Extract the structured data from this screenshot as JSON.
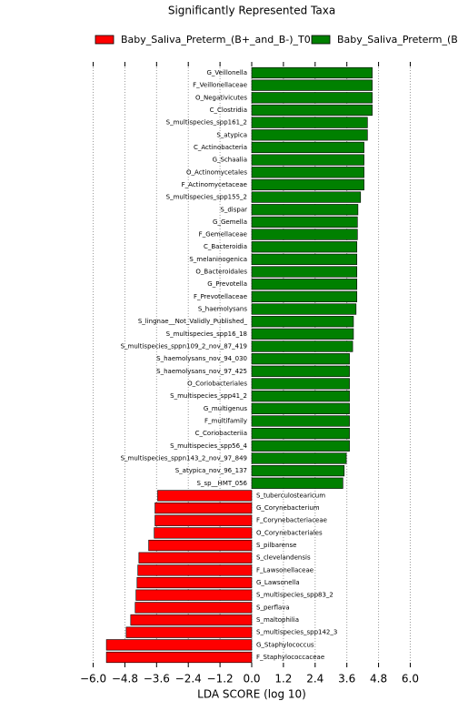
{
  "chart_data": {
    "type": "barh",
    "title": "Significantly Represented Taxa",
    "xlabel": "LDA SCORE (log 10)",
    "xlim": [
      -6.5,
      6.5
    ],
    "xticks": [
      {
        "value": -6.0,
        "label": "−6.0"
      },
      {
        "value": -4.8,
        "label": "−4.8"
      },
      {
        "value": -3.6,
        "label": "−3.6"
      },
      {
        "value": -2.4,
        "label": "−2.4"
      },
      {
        "value": -1.2,
        "label": "−1.2"
      },
      {
        "value": 0,
        "label": "0.0"
      },
      {
        "value": 1.2,
        "label": "1.2"
      },
      {
        "value": 2.4,
        "label": "2.4"
      },
      {
        "value": 3.6,
        "label": "3.6"
      },
      {
        "value": 4.8,
        "label": "4.8"
      },
      {
        "value": 6.0,
        "label": "6.0"
      }
    ],
    "grid": true,
    "series": [
      {
        "name": "Baby_Saliva_Preterm_(B+_and_B-)_T0",
        "color": "#ff0000",
        "categories": [
          "S_tuberculostearicum",
          "G_Corynebacterium",
          "F_Corynebacteriaceae",
          "O_Corynebacteriales",
          "S_pilbarense",
          "S_clevelandensis",
          "F_Lawsonellaceae",
          "G_Lawsonella",
          "S_multispecies_spp83_2",
          "S_perflava",
          "S_maltophilia",
          "S_multispecies_spp142_3",
          "G_Staphylococcus",
          "F_Staphylococcaceae"
        ],
        "values": [
          -3.56,
          -3.66,
          -3.66,
          -3.69,
          -3.9,
          -4.27,
          -4.31,
          -4.34,
          -4.38,
          -4.41,
          -4.58,
          -4.75,
          -5.5,
          -5.5
        ]
      },
      {
        "name": "Baby_Saliva_Preterm_(B+_",
        "color": "#008000",
        "categories": [
          "G_Veillonella",
          "F_Veillonellaceae",
          "O_Negativicutes",
          "C_Clostridia",
          "S_multispecies_spp161_2",
          "S_atypica",
          "C_Actinobacteria",
          "G_Schaalia",
          "O_Actinomycetales",
          "F_Actinomycetaceae",
          "S_multispecies_spp155_2",
          "S_dispar",
          "G_Gemella",
          "F_Gemellaceae",
          "C_Bacteroidia",
          "S_melaninogenica",
          "O_Bacteroidales",
          "G_Prevotella",
          "F_Prevotellaceae",
          "S_haemolysans",
          "S_lingnae__Not_Validly_Published_",
          "S_multispecies_spp16_18",
          "S_multispecies_sppn109_2_nov_87_419",
          "S_haemolysans_nov_94_030",
          "S_haemolysans_nov_97_425",
          "O_Coriobacteriales",
          "S_multispecies_spp41_2",
          "G_multigenus",
          "F_multifamily",
          "C_Coriobacteriia",
          "S_multispecies_spp56_4",
          "S_multispecies_sppn143_2_nov_97_849",
          "S_atypica_nov_96_137",
          "S_sp__HMT_056"
        ],
        "values": [
          4.56,
          4.56,
          4.56,
          4.56,
          4.38,
          4.38,
          4.25,
          4.25,
          4.25,
          4.25,
          4.12,
          4.02,
          4.0,
          4.0,
          3.98,
          3.98,
          3.98,
          3.98,
          3.98,
          3.95,
          3.85,
          3.85,
          3.82,
          3.7,
          3.7,
          3.7,
          3.7,
          3.7,
          3.7,
          3.7,
          3.7,
          3.58,
          3.5,
          3.45
        ]
      }
    ]
  }
}
